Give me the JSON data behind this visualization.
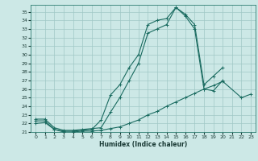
{
  "xlabel": "Humidex (Indice chaleur)",
  "bg_color": "#cce8e6",
  "grid_color": "#a0c8c5",
  "line_color": "#1a6b60",
  "xlim": [
    -0.5,
    23.5
  ],
  "ylim": [
    21,
    35.8
  ],
  "xticks": [
    0,
    1,
    2,
    3,
    4,
    5,
    6,
    7,
    8,
    9,
    10,
    11,
    12,
    13,
    14,
    15,
    16,
    17,
    18,
    19,
    20,
    21,
    22,
    23
  ],
  "yticks": [
    21,
    22,
    23,
    24,
    25,
    26,
    27,
    28,
    29,
    30,
    31,
    32,
    33,
    34,
    35
  ],
  "line1_x": [
    0,
    1,
    2,
    3,
    4,
    5,
    6,
    7,
    8,
    9,
    10,
    11,
    12,
    13,
    14,
    15,
    16,
    17,
    18,
    19,
    20
  ],
  "line1_y": [
    22.3,
    22.3,
    21.3,
    21.1,
    21.1,
    21.2,
    21.3,
    22.4,
    25.3,
    26.5,
    28.5,
    30.0,
    33.5,
    34.0,
    34.2,
    35.5,
    34.7,
    33.5,
    26.5,
    27.5,
    28.5
  ],
  "line2_x": [
    0,
    1,
    2,
    3,
    4,
    5,
    6,
    7,
    8,
    9,
    10,
    11,
    12,
    13,
    14,
    15,
    16,
    17,
    18,
    19,
    20
  ],
  "line2_y": [
    22.5,
    22.5,
    21.5,
    21.2,
    21.2,
    21.3,
    21.4,
    21.5,
    23.3,
    25.0,
    27.0,
    29.0,
    32.5,
    33.0,
    33.5,
    35.5,
    34.5,
    33.0,
    26.0,
    25.8,
    27.0
  ],
  "line3_x": [
    0,
    1,
    2,
    3,
    4,
    5,
    6,
    7,
    8,
    9,
    10,
    11,
    12,
    13,
    14,
    15,
    16,
    17,
    18,
    19,
    20,
    22,
    23
  ],
  "line3_y": [
    22.0,
    22.1,
    21.3,
    21.0,
    21.0,
    21.1,
    21.1,
    21.2,
    21.4,
    21.6,
    22.0,
    22.4,
    23.0,
    23.4,
    24.0,
    24.5,
    25.0,
    25.5,
    26.0,
    26.4,
    26.9,
    25.0,
    25.4
  ]
}
